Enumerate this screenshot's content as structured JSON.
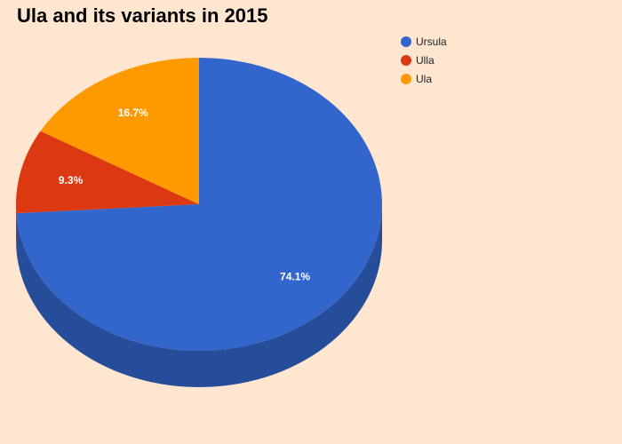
{
  "chart_data": {
    "type": "pie",
    "title": "Ula and its variants in 2015",
    "legend_position": "top-right",
    "three_d": true,
    "slices": [
      {
        "name": "Ursula",
        "value": 74.1,
        "label": "74.1%",
        "color": "#3366cc",
        "side_color": "#264d99"
      },
      {
        "name": "Ulla",
        "value": 9.3,
        "label": "9.3%",
        "color": "#dc3912",
        "side_color": "#a52b0e"
      },
      {
        "name": "Ula",
        "value": 16.7,
        "label": "16.7%",
        "color": "#ff9900",
        "side_color": "#bf7300"
      }
    ]
  }
}
